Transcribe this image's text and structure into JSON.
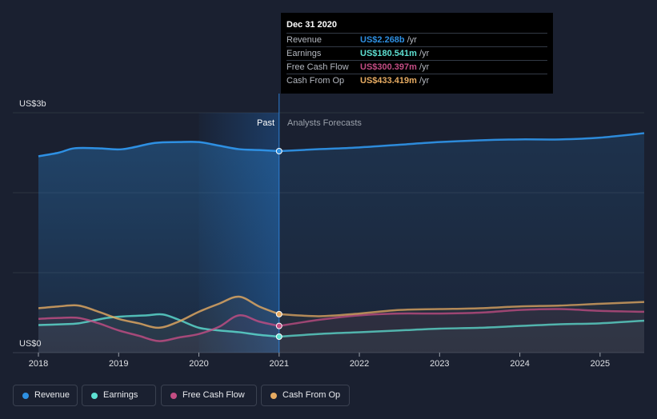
{
  "chart_data": {
    "type": "area",
    "title": "",
    "y_axis_labels": [
      "US$3b",
      "US$0"
    ],
    "ylim": [
      0,
      2.7
    ],
    "xlim": [
      2018,
      2025.55
    ],
    "x_ticks": [
      "2018",
      "2019",
      "2020",
      "2021",
      "2022",
      "2023",
      "2024",
      "2025"
    ],
    "divider_x": 2021,
    "region_labels": {
      "past": "Past",
      "forecast": "Analysts Forecasts"
    },
    "series": [
      {
        "name": "Revenue",
        "key": "revenue",
        "color": "#2e90e3",
        "points": [
          [
            2018,
            2.21
          ],
          [
            2018.25,
            2.25
          ],
          [
            2018.45,
            2.3
          ],
          [
            2018.75,
            2.3
          ],
          [
            2019.05,
            2.29
          ],
          [
            2019.45,
            2.36
          ],
          [
            2019.75,
            2.37
          ],
          [
            2020.0,
            2.37
          ],
          [
            2020.25,
            2.33
          ],
          [
            2020.5,
            2.29
          ],
          [
            2020.75,
            2.28
          ],
          [
            2021.0,
            2.268
          ],
          [
            2021.5,
            2.29
          ],
          [
            2022.0,
            2.31
          ],
          [
            2022.5,
            2.34
          ],
          [
            2023.0,
            2.37
          ],
          [
            2023.5,
            2.39
          ],
          [
            2024.0,
            2.4
          ],
          [
            2024.5,
            2.4
          ],
          [
            2025.0,
            2.42
          ],
          [
            2025.55,
            2.47
          ]
        ]
      },
      {
        "name": "Earnings",
        "key": "earnings",
        "color": "#5ee0d2",
        "points": [
          [
            2018,
            0.31
          ],
          [
            2018.3,
            0.32
          ],
          [
            2018.5,
            0.33
          ],
          [
            2018.85,
            0.39
          ],
          [
            2019.1,
            0.41
          ],
          [
            2019.35,
            0.42
          ],
          [
            2019.55,
            0.43
          ],
          [
            2019.75,
            0.37
          ],
          [
            2020.0,
            0.28
          ],
          [
            2020.25,
            0.25
          ],
          [
            2020.5,
            0.23
          ],
          [
            2020.75,
            0.2
          ],
          [
            2021.0,
            0.18
          ],
          [
            2021.5,
            0.21
          ],
          [
            2022.0,
            0.23
          ],
          [
            2022.5,
            0.25
          ],
          [
            2023.0,
            0.27
          ],
          [
            2023.5,
            0.28
          ],
          [
            2024.0,
            0.3
          ],
          [
            2024.5,
            0.32
          ],
          [
            2025.0,
            0.33
          ],
          [
            2025.55,
            0.36
          ]
        ]
      },
      {
        "name": "Free Cash Flow",
        "key": "fcf",
        "color": "#c44d84",
        "points": [
          [
            2018,
            0.38
          ],
          [
            2018.25,
            0.39
          ],
          [
            2018.5,
            0.39
          ],
          [
            2018.75,
            0.33
          ],
          [
            2019.0,
            0.25
          ],
          [
            2019.25,
            0.19
          ],
          [
            2019.5,
            0.13
          ],
          [
            2019.75,
            0.17
          ],
          [
            2020.0,
            0.21
          ],
          [
            2020.25,
            0.29
          ],
          [
            2020.5,
            0.42
          ],
          [
            2020.75,
            0.35
          ],
          [
            2021.0,
            0.3
          ],
          [
            2021.5,
            0.37
          ],
          [
            2022.0,
            0.42
          ],
          [
            2022.5,
            0.44
          ],
          [
            2023.0,
            0.44
          ],
          [
            2023.5,
            0.45
          ],
          [
            2024.0,
            0.48
          ],
          [
            2024.5,
            0.49
          ],
          [
            2025.0,
            0.47
          ],
          [
            2025.55,
            0.46
          ]
        ]
      },
      {
        "name": "Cash From Op",
        "key": "cfo",
        "color": "#e6ab62",
        "points": [
          [
            2018,
            0.5
          ],
          [
            2018.25,
            0.52
          ],
          [
            2018.5,
            0.53
          ],
          [
            2018.75,
            0.46
          ],
          [
            2019.0,
            0.38
          ],
          [
            2019.25,
            0.33
          ],
          [
            2019.5,
            0.28
          ],
          [
            2019.75,
            0.35
          ],
          [
            2020.0,
            0.46
          ],
          [
            2020.25,
            0.55
          ],
          [
            2020.5,
            0.63
          ],
          [
            2020.75,
            0.52
          ],
          [
            2021.0,
            0.433
          ],
          [
            2021.5,
            0.41
          ],
          [
            2022.0,
            0.44
          ],
          [
            2022.5,
            0.48
          ],
          [
            2023.0,
            0.49
          ],
          [
            2023.5,
            0.5
          ],
          [
            2024.0,
            0.52
          ],
          [
            2024.5,
            0.53
          ],
          [
            2025.0,
            0.55
          ],
          [
            2025.55,
            0.57
          ]
        ]
      }
    ]
  },
  "tooltip": {
    "title": "Dec 31 2020",
    "rows": [
      {
        "label": "Revenue",
        "value": "US$2.268b",
        "unit": "/yr",
        "color": "#2e90e3"
      },
      {
        "label": "Earnings",
        "value": "US$180.541m",
        "unit": "/yr",
        "color": "#5ee0d2"
      },
      {
        "label": "Free Cash Flow",
        "value": "US$300.397m",
        "unit": "/yr",
        "color": "#c44d84"
      },
      {
        "label": "Cash From Op",
        "value": "US$433.419m",
        "unit": "/yr",
        "color": "#e6ab62"
      }
    ]
  },
  "legend": [
    {
      "label": "Revenue",
      "color": "#2e90e3"
    },
    {
      "label": "Earnings",
      "color": "#5ee0d2"
    },
    {
      "label": "Free Cash Flow",
      "color": "#c44d84"
    },
    {
      "label": "Cash From Op",
      "color": "#e6ab62"
    }
  ]
}
